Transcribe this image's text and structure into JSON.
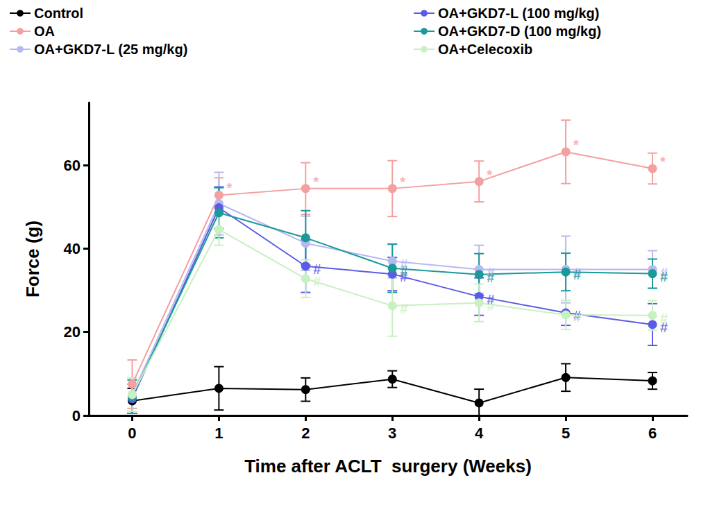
{
  "chart_data": {
    "type": "line",
    "x_label": "Time after ACLT  surgery (Weeks)",
    "y_label": "Force (g)",
    "x": [
      0,
      1,
      2,
      3,
      4,
      5,
      6
    ],
    "xlim": [
      -0.5,
      6.4
    ],
    "xticks": [
      0,
      1,
      2,
      3,
      4,
      5,
      6
    ],
    "ylim": [
      0,
      75
    ],
    "yticks": [
      0,
      20,
      40,
      60
    ],
    "grid": false,
    "legend": "top",
    "marker": "circle",
    "series": [
      {
        "name": "Control",
        "color": "#000000",
        "values": [
          3.5,
          6.5,
          6.2,
          8.7,
          3.0,
          9.1,
          8.3
        ],
        "errors": [
          3.0,
          5.2,
          2.8,
          2.0,
          3.3,
          3.3,
          2.0
        ]
      },
      {
        "name": "OA",
        "color": "#f4a0a0",
        "values": [
          7.5,
          52.8,
          54.4,
          54.4,
          56.1,
          63.2,
          59.2
        ],
        "errors": [
          5.8,
          4.2,
          6.2,
          6.7,
          4.9,
          7.6,
          3.7
        ]
      },
      {
        "name": "OA+GKD7-L (25 mg/kg)",
        "color": "#b8b8f0",
        "values": [
          5.0,
          50.8,
          41.3,
          37.0,
          35.0,
          35.0,
          35.0
        ],
        "errors": [
          4.0,
          7.5,
          6.5,
          4.0,
          5.8,
          8.0,
          4.5
        ]
      },
      {
        "name": "OA+GKD7-L (100 mg/kg)",
        "color": "#5b5be6",
        "values": [
          4.0,
          49.8,
          35.8,
          33.9,
          28.5,
          24.6,
          21.8
        ],
        "errors": [
          3.5,
          5.0,
          6.3,
          4.0,
          4.5,
          3.0,
          5.0
        ]
      },
      {
        "name": "OA+GKD7-D (100 mg/kg)",
        "color": "#1a9a9a",
        "values": [
          4.5,
          48.6,
          42.6,
          35.3,
          33.8,
          34.4,
          34.0
        ],
        "errors": [
          4.0,
          6.0,
          6.5,
          5.8,
          5.0,
          4.5,
          3.5
        ]
      },
      {
        "name": "OA+Celecoxib",
        "color": "#c8f0c0",
        "values": [
          5.0,
          44.6,
          32.8,
          26.3,
          27.0,
          24.1,
          24.0
        ],
        "errors": [
          4.0,
          3.8,
          4.5,
          7.3,
          4.5,
          3.5,
          3.5
        ]
      }
    ],
    "annotations": [
      {
        "text": "*",
        "series": "OA",
        "x": [
          1,
          2,
          3,
          4,
          5,
          6
        ]
      },
      {
        "text": "#",
        "series": "OA+GKD7-L (25 mg/kg)",
        "x": [
          3,
          4,
          5,
          6
        ]
      },
      {
        "text": "#",
        "series": "OA+GKD7-L (100 mg/kg)",
        "x": [
          2,
          3,
          4,
          5,
          6
        ]
      },
      {
        "text": "#",
        "series": "OA+GKD7-D (100 mg/kg)",
        "x": [
          3,
          4,
          5,
          6
        ]
      },
      {
        "text": "#",
        "series": "OA+Celecoxib",
        "x": [
          2,
          3,
          4,
          5,
          6
        ]
      }
    ]
  }
}
